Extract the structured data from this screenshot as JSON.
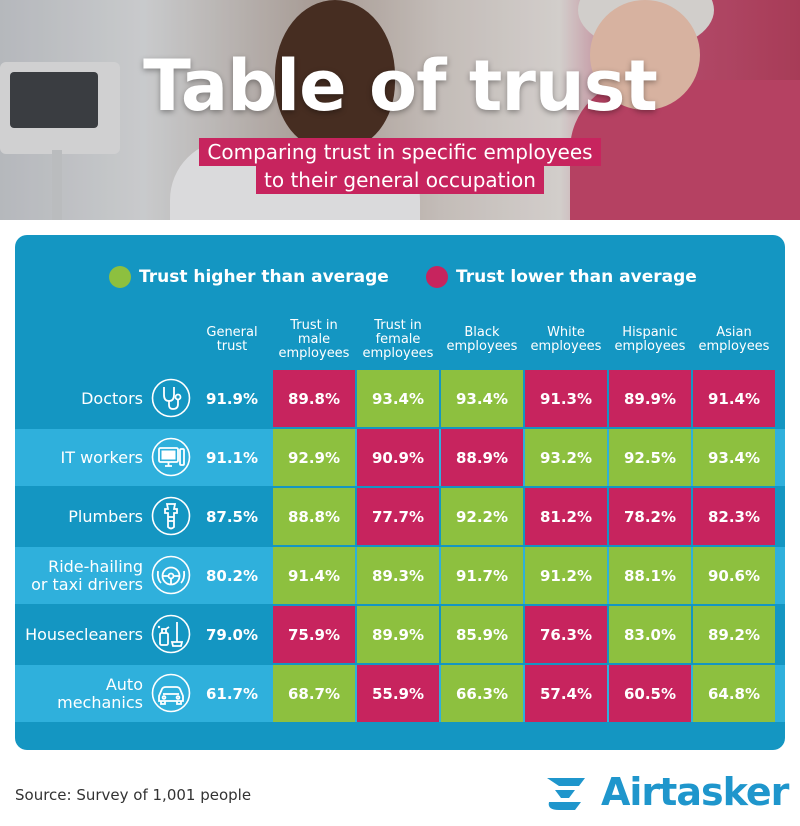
{
  "title": "Table of trust",
  "subtitle_lines": [
    "Comparing trust in specific employees",
    "to their general occupation"
  ],
  "legend": [
    {
      "label": "Trust higher than average",
      "color": "#8dc03f"
    },
    {
      "label": "Trust lower than average",
      "color": "#c7245e"
    }
  ],
  "colors": {
    "panel": "#1496c2",
    "row_band": "#2fb0dc",
    "higher": "#8dc03f",
    "lower": "#c7245e",
    "subtitle_bg": "#c7245e",
    "logo": "#1f96cc"
  },
  "source": "Source: Survey of 1,001 people",
  "logo_text": "Airtasker",
  "chart_data": {
    "type": "table",
    "columns": [
      "General trust",
      "Trust in male employees",
      "Trust in female employees",
      "Black employees",
      "White employees",
      "Hispanic employees",
      "Asian employees"
    ],
    "column_header_lines": [
      [
        "General",
        "trust"
      ],
      [
        "Trust in",
        "male",
        "employees"
      ],
      [
        "Trust in",
        "female",
        "employees"
      ],
      [
        "Black",
        "employees"
      ],
      [
        "White",
        "employees"
      ],
      [
        "Hispanic",
        "employees"
      ],
      [
        "Asian",
        "employees"
      ]
    ],
    "rows": [
      {
        "label": "Doctors",
        "label_lines": [
          "Doctors"
        ],
        "icon": "stethoscope-icon",
        "general": "91.9%",
        "values": [
          "89.8%",
          "93.4%",
          "93.4%",
          "91.3%",
          "89.9%",
          "91.4%"
        ],
        "higher": [
          false,
          true,
          true,
          false,
          false,
          false
        ]
      },
      {
        "label": "IT workers",
        "label_lines": [
          "IT workers"
        ],
        "icon": "computer-icon",
        "general": "91.1%",
        "values": [
          "92.9%",
          "90.9%",
          "88.9%",
          "93.2%",
          "92.5%",
          "93.4%"
        ],
        "higher": [
          true,
          false,
          false,
          true,
          true,
          true
        ]
      },
      {
        "label": "Plumbers",
        "label_lines": [
          "Plumbers"
        ],
        "icon": "wrench-icon",
        "general": "87.5%",
        "values": [
          "88.8%",
          "77.7%",
          "92.2%",
          "81.2%",
          "78.2%",
          "82.3%"
        ],
        "higher": [
          true,
          false,
          true,
          false,
          false,
          false
        ]
      },
      {
        "label": "Ride-hailing or taxi drivers",
        "label_lines": [
          "Ride-hailing",
          "or taxi drivers"
        ],
        "icon": "steering-wheel-icon",
        "general": "80.2%",
        "values": [
          "91.4%",
          "89.3%",
          "91.7%",
          "91.2%",
          "88.1%",
          "90.6%"
        ],
        "higher": [
          true,
          true,
          true,
          true,
          true,
          true
        ]
      },
      {
        "label": "Housecleaners",
        "label_lines": [
          "Housecleaners"
        ],
        "icon": "cleaning-supplies-icon",
        "general": "79.0%",
        "values": [
          "75.9%",
          "89.9%",
          "85.9%",
          "76.3%",
          "83.0%",
          "89.2%"
        ],
        "higher": [
          false,
          true,
          true,
          false,
          true,
          true
        ]
      },
      {
        "label": "Auto mechanics",
        "label_lines": [
          "Auto",
          "mechanics"
        ],
        "icon": "car-icon",
        "general": "61.7%",
        "values": [
          "68.7%",
          "55.9%",
          "66.3%",
          "57.4%",
          "60.5%",
          "64.8%"
        ],
        "higher": [
          true,
          false,
          true,
          false,
          false,
          true
        ]
      }
    ]
  }
}
